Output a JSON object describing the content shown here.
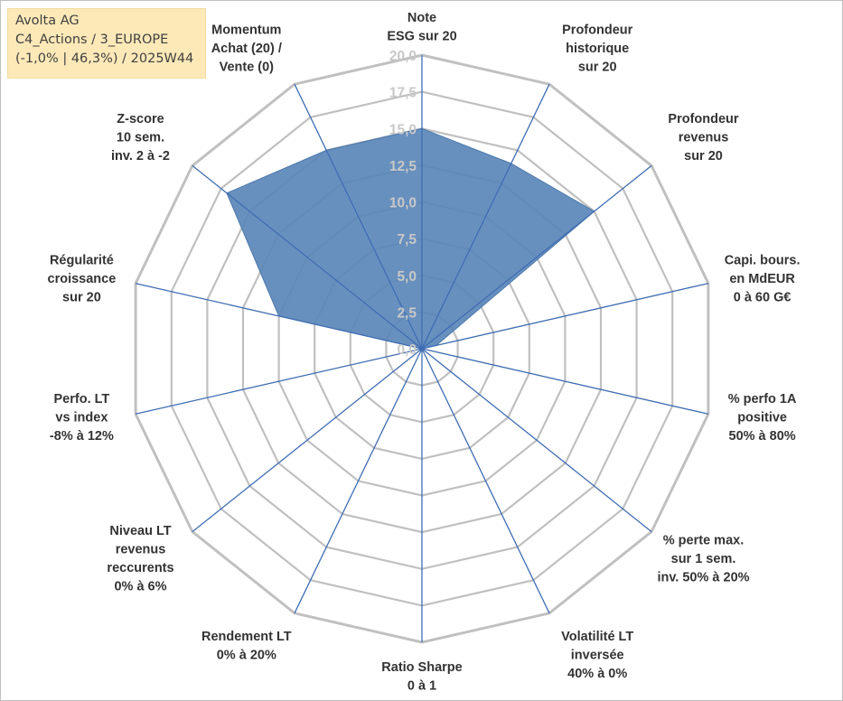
{
  "info_box": {
    "line1": "Avolta AG",
    "line2": "C4_Actions / 3_EUROPE",
    "line3": "(-1,0% | 46,3%) / 2025W44"
  },
  "colors": {
    "fill": "#5b87b9",
    "grid": "#c0c0c0",
    "spoke": "#3f6db3",
    "tick_text": "#c8c8c8",
    "label_text": "#333333",
    "info_bg": "#fde9b8"
  },
  "chart_data": {
    "type": "radar",
    "rmax": 20,
    "grid": true,
    "tick_labels": [
      "0,0",
      "2,5",
      "5,0",
      "7,5",
      "10,0",
      "12,5",
      "15,0",
      "17,5",
      "20,0"
    ],
    "axes": [
      {
        "label": [
          "Note",
          "ESG sur 20"
        ],
        "value": 15.0
      },
      {
        "label": [
          "Profondeur",
          "historique",
          "sur 20"
        ],
        "value": 14.0
      },
      {
        "label": [
          "Profondeur",
          "revenus",
          "sur 20"
        ],
        "value": 15.0
      },
      {
        "label": [
          "Capi. bours.",
          "en MdEUR",
          "0 à 60 G€"
        ],
        "value": 1.0
      },
      {
        "label": [
          "% perfo 1A",
          "positive",
          "50% à 80%"
        ],
        "value": 0.0
      },
      {
        "label": [
          "% perte max.",
          "sur 1 sem.",
          "inv. 50% à 20%"
        ],
        "value": 0.0
      },
      {
        "label": [
          "Volatilité LT",
          "inversée",
          "40% à 0%"
        ],
        "value": 0.0
      },
      {
        "label": [
          "Ratio Sharpe",
          "0 à 1"
        ],
        "value": 0.0
      },
      {
        "label": [
          "Rendement LT",
          "0% à 20%"
        ],
        "value": 0.0
      },
      {
        "label": [
          "Niveau LT",
          "revenus",
          "reccurents",
          "0% à 6%"
        ],
        "value": 0.0
      },
      {
        "label": [
          "Perfo. LT",
          "vs index",
          "-8% à 12%"
        ],
        "value": 0.0
      },
      {
        "label": [
          "Régularité",
          "croissance",
          "sur 20"
        ],
        "value": 10.0
      },
      {
        "label": [
          "Z-score",
          "10 sem.",
          "inv. 2 à -2"
        ],
        "value": 17.0
      },
      {
        "label": [
          "Momentum",
          "Achat (20) /",
          "Vente (0)"
        ],
        "value": 15.0
      }
    ]
  }
}
